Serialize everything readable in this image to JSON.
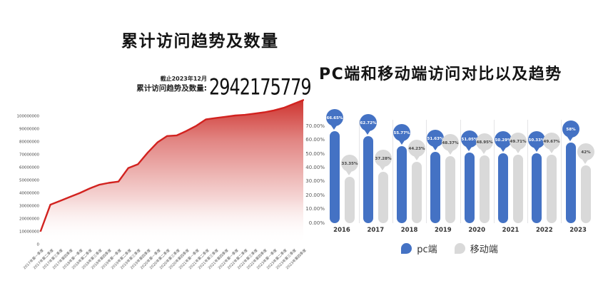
{
  "accent_colors": {
    "pc_blue": "#4472c4",
    "mobile_gray": "#d9d9d9",
    "line_red": "#d2221f"
  },
  "chart_data": [
    {
      "id": "cumulative-visits",
      "type": "area",
      "title": "累计访问趋势及数量",
      "stat_caption": "截止2023年12月",
      "stat_label": "累计访问趋势及数量:",
      "stat_value": "2942175779",
      "x": [
        "2017年第一季度",
        "2017年第二季度",
        "2017年第三季度",
        "2017年第四季度",
        "2018年第一季度",
        "2018年第二季度",
        "2018年第三季度",
        "2018年第四季度",
        "2019年第一季度",
        "2019年第二季度",
        "2019年第三季度",
        "2019年第四季度",
        "2020年第一季度",
        "2020年第二季度",
        "2020年第三季度",
        "2020年第四季度",
        "2021年第一季度",
        "2021年第二季度",
        "2021年第三季度",
        "2021年第四季度",
        "2022年第一季度",
        "2022年第二季度",
        "2022年第三季度",
        "2022年第四季度",
        "2023年第一季度",
        "2023年第二季度",
        "2023年第三季度",
        "2023年第四季度"
      ],
      "values": [
        10000000,
        30500000,
        33500000,
        36500000,
        39500000,
        43000000,
        46000000,
        47500000,
        48500000,
        59000000,
        62000000,
        71000000,
        79000000,
        84000000,
        84500000,
        88000000,
        92000000,
        97000000,
        98000000,
        99000000,
        100000000,
        100500000,
        101500000,
        102500000,
        104000000,
        106000000,
        109000000,
        112000000
      ],
      "ylim": [
        0,
        100000000
      ],
      "ytick_labels": [
        "0",
        "10000000",
        "20000000",
        "30000000",
        "40000000",
        "50000000",
        "60000000",
        "70000000",
        "80000000",
        "90000000",
        "100000000"
      ],
      "line_color": "#d2221f",
      "fill_gradient_top": "#ca231e",
      "fill_gradient_bottom": "#ffffff",
      "grid": false,
      "legend": "none"
    },
    {
      "id": "pc-vs-mobile",
      "type": "bar",
      "title": "PC端和移动端访问对比以及趋势",
      "categories": [
        "2016",
        "2017",
        "2018",
        "2019",
        "2020",
        "2021",
        "2022",
        "2023"
      ],
      "series": [
        {
          "name": "pc端",
          "color": "#4472c4",
          "label_text_color": "#ffffff",
          "values": [
            66.65,
            62.72,
            55.77,
            51.63,
            51.05,
            50.29,
            50.33,
            58
          ],
          "labels": [
            "66.65%",
            "62.72%",
            "55.77%",
            "51.63%",
            "51.05%",
            "50.29%",
            "50.33%",
            "58%"
          ]
        },
        {
          "name": "移动端",
          "color": "#d9d9d9",
          "label_text_color": "#444444",
          "values": [
            33.35,
            37.28,
            44.23,
            48.37,
            48.95,
            49.71,
            49.67,
            42
          ],
          "labels": [
            "33.35%",
            "37.28%",
            "44.23%",
            "48.37%",
            "48.95%",
            "49.71%",
            "49.67%",
            "42%"
          ]
        }
      ],
      "ylim": [
        0,
        70
      ],
      "ytick_labels": [
        "0.00%",
        "10.00%",
        "20.00%",
        "30.00%",
        "40.00%",
        "50.00%",
        "60.00%",
        "70.00%"
      ],
      "grid": false,
      "legend_position": "bottom"
    }
  ]
}
